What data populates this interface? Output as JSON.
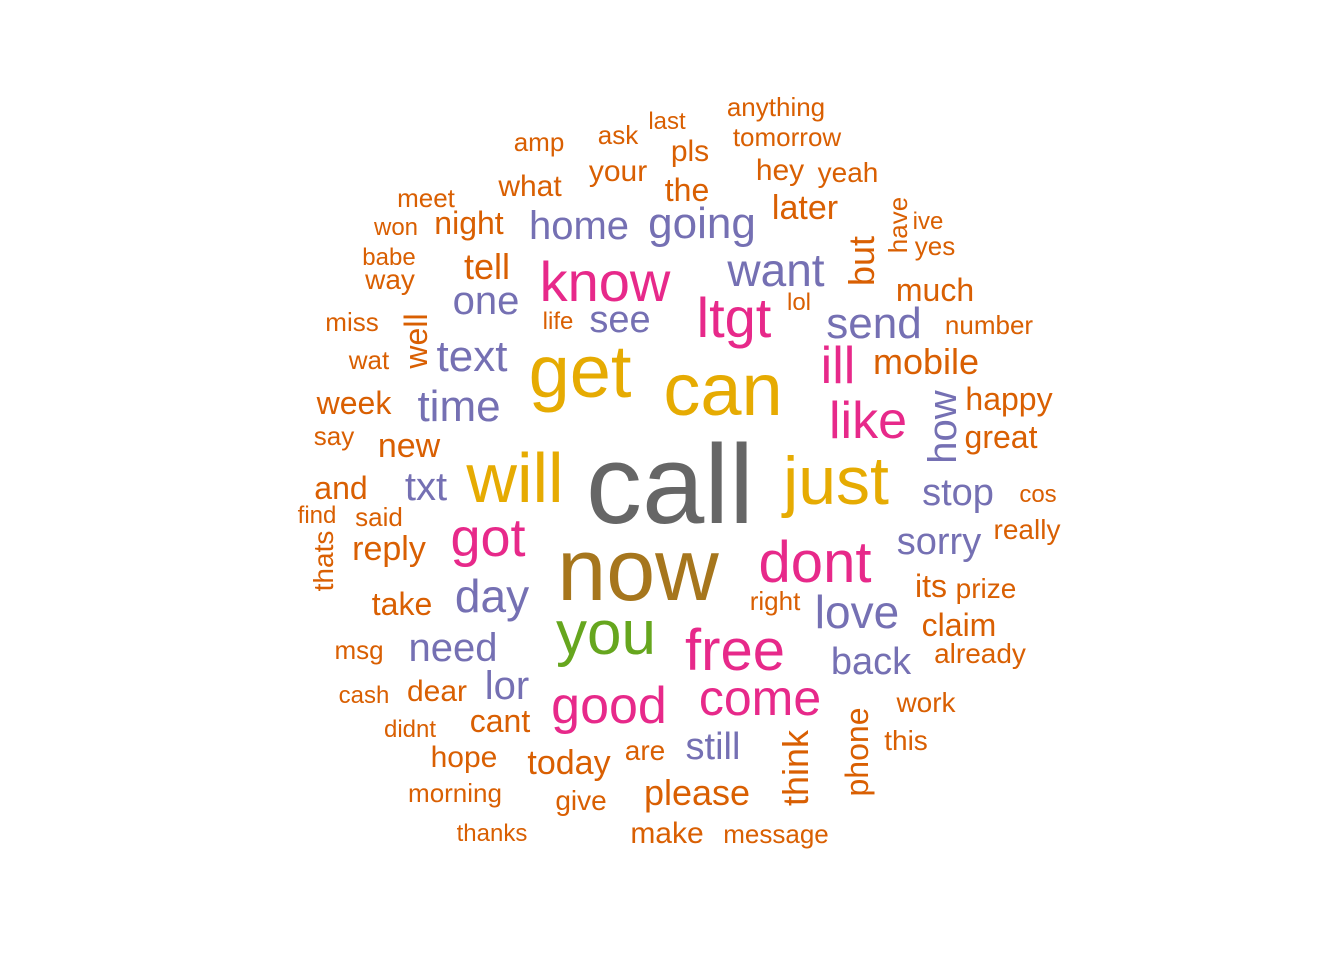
{
  "palette": {
    "gray": "#666666",
    "brown": "#a6761d",
    "gold": "#e6ab02",
    "green": "#66a61e",
    "pink": "#e7298a",
    "purple": "#7570b3",
    "orange": "#d95f02"
  },
  "words": [
    {
      "text": "call",
      "color": "gray"
    },
    {
      "text": "now",
      "color": "brown"
    },
    {
      "text": "can",
      "color": "gold"
    },
    {
      "text": "get",
      "color": "gold"
    },
    {
      "text": "will",
      "color": "gold"
    },
    {
      "text": "just",
      "color": "gold"
    },
    {
      "text": "you",
      "color": "green"
    },
    {
      "text": "dont",
      "color": "pink"
    },
    {
      "text": "know",
      "color": "pink"
    },
    {
      "text": "free",
      "color": "pink"
    },
    {
      "text": "ltgt",
      "color": "pink"
    },
    {
      "text": "good",
      "color": "pink"
    },
    {
      "text": "come",
      "color": "pink"
    },
    {
      "text": "like",
      "color": "pink"
    },
    {
      "text": "got",
      "color": "pink"
    },
    {
      "text": "ill",
      "color": "pink"
    },
    {
      "text": "want",
      "color": "purple"
    },
    {
      "text": "going",
      "color": "purple"
    },
    {
      "text": "home",
      "color": "purple"
    },
    {
      "text": "send",
      "color": "purple"
    },
    {
      "text": "text",
      "color": "purple"
    },
    {
      "text": "time",
      "color": "purple"
    },
    {
      "text": "one",
      "color": "purple"
    },
    {
      "text": "see",
      "color": "purple"
    },
    {
      "text": "txt",
      "color": "purple"
    },
    {
      "text": "day",
      "color": "purple"
    },
    {
      "text": "love",
      "color": "purple"
    },
    {
      "text": "need",
      "color": "purple"
    },
    {
      "text": "sorry",
      "color": "purple"
    },
    {
      "text": "stop",
      "color": "purple"
    },
    {
      "text": "back",
      "color": "purple"
    },
    {
      "text": "lor",
      "color": "purple"
    },
    {
      "text": "still",
      "color": "purple"
    },
    {
      "text": "how",
      "color": "purple"
    },
    {
      "text": "mobile",
      "color": "orange"
    },
    {
      "text": "later",
      "color": "orange"
    },
    {
      "text": "but",
      "color": "orange"
    },
    {
      "text": "much",
      "color": "orange"
    },
    {
      "text": "tell",
      "color": "orange"
    },
    {
      "text": "night",
      "color": "orange"
    },
    {
      "text": "what",
      "color": "orange"
    },
    {
      "text": "your",
      "color": "orange"
    },
    {
      "text": "the",
      "color": "orange"
    },
    {
      "text": "pls",
      "color": "orange"
    },
    {
      "text": "hey",
      "color": "orange"
    },
    {
      "text": "yeah",
      "color": "orange"
    },
    {
      "text": "anything",
      "color": "orange"
    },
    {
      "text": "tomorrow",
      "color": "orange"
    },
    {
      "text": "last",
      "color": "orange"
    },
    {
      "text": "ask",
      "color": "orange"
    },
    {
      "text": "amp",
      "color": "orange"
    },
    {
      "text": "meet",
      "color": "orange"
    },
    {
      "text": "won",
      "color": "orange"
    },
    {
      "text": "babe",
      "color": "orange"
    },
    {
      "text": "way",
      "color": "orange"
    },
    {
      "text": "miss",
      "color": "orange"
    },
    {
      "text": "life",
      "color": "orange"
    },
    {
      "text": "lol",
      "color": "orange"
    },
    {
      "text": "have",
      "color": "orange"
    },
    {
      "text": "ive",
      "color": "orange"
    },
    {
      "text": "yes",
      "color": "orange"
    },
    {
      "text": "number",
      "color": "orange"
    },
    {
      "text": "well",
      "color": "orange"
    },
    {
      "text": "wat",
      "color": "orange"
    },
    {
      "text": "week",
      "color": "orange"
    },
    {
      "text": "happy",
      "color": "orange"
    },
    {
      "text": "new",
      "color": "orange"
    },
    {
      "text": "say",
      "color": "orange"
    },
    {
      "text": "great",
      "color": "orange"
    },
    {
      "text": "and",
      "color": "orange"
    },
    {
      "text": "cos",
      "color": "orange"
    },
    {
      "text": "find",
      "color": "orange"
    },
    {
      "text": "said",
      "color": "orange"
    },
    {
      "text": "really",
      "color": "orange"
    },
    {
      "text": "reply",
      "color": "orange"
    },
    {
      "text": "thats",
      "color": "orange"
    },
    {
      "text": "its",
      "color": "orange"
    },
    {
      "text": "prize",
      "color": "orange"
    },
    {
      "text": "take",
      "color": "orange"
    },
    {
      "text": "right",
      "color": "orange"
    },
    {
      "text": "claim",
      "color": "orange"
    },
    {
      "text": "msg",
      "color": "orange"
    },
    {
      "text": "already",
      "color": "orange"
    },
    {
      "text": "cash",
      "color": "orange"
    },
    {
      "text": "dear",
      "color": "orange"
    },
    {
      "text": "work",
      "color": "orange"
    },
    {
      "text": "didnt",
      "color": "orange"
    },
    {
      "text": "cant",
      "color": "orange"
    },
    {
      "text": "phone",
      "color": "orange"
    },
    {
      "text": "this",
      "color": "orange"
    },
    {
      "text": "hope",
      "color": "orange"
    },
    {
      "text": "today",
      "color": "orange"
    },
    {
      "text": "are",
      "color": "orange"
    },
    {
      "text": "think",
      "color": "orange"
    },
    {
      "text": "morning",
      "color": "orange"
    },
    {
      "text": "give",
      "color": "orange"
    },
    {
      "text": "please",
      "color": "orange"
    },
    {
      "text": "thanks",
      "color": "orange"
    },
    {
      "text": "make",
      "color": "orange"
    },
    {
      "text": "message",
      "color": "orange"
    }
  ]
}
